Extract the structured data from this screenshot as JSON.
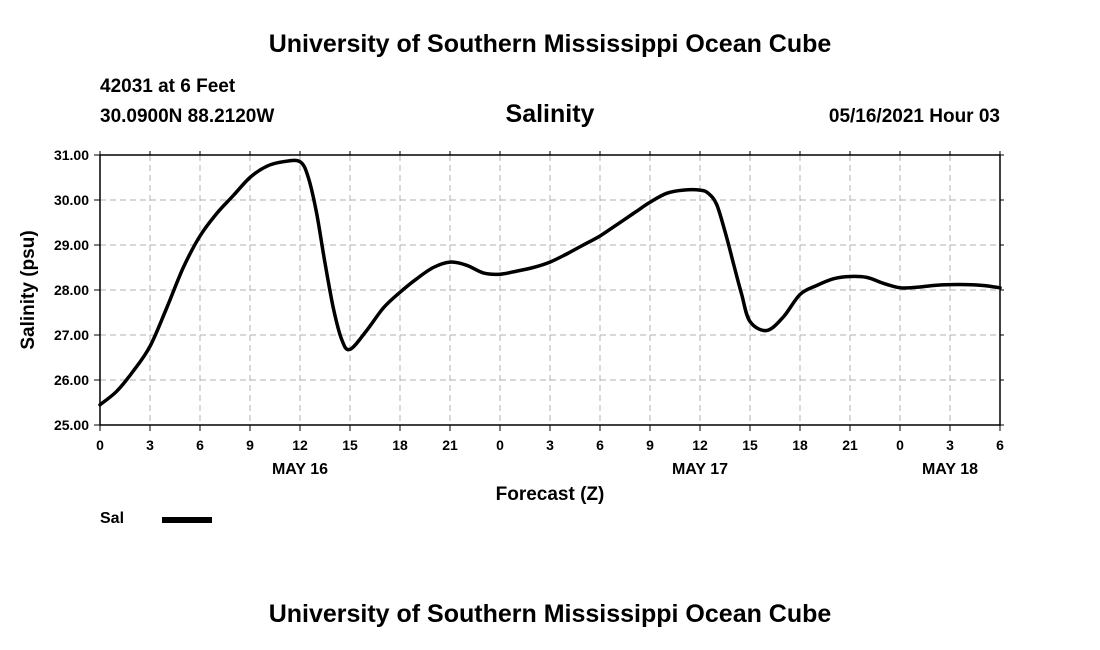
{
  "header": {
    "title": "University of Southern Mississippi Ocean Cube",
    "station": "42031 at 6 Feet",
    "coords": "30.0900N  88.2120W",
    "datetime": "05/16/2021 Hour 03"
  },
  "footer": {
    "title": "University of Southern Mississippi Ocean Cube"
  },
  "chart_data": {
    "type": "line",
    "title": "Salinity",
    "xlabel": "Forecast (Z)",
    "ylabel": "Salinity (psu)",
    "ylim": [
      25.0,
      31.0
    ],
    "xlim": [
      0,
      54
    ],
    "grid": true,
    "line_color": "#000000",
    "x_ticks": [
      0,
      3,
      6,
      9,
      12,
      15,
      18,
      21,
      24,
      27,
      30,
      33,
      36,
      39,
      42,
      45,
      48,
      51,
      54
    ],
    "x_tick_labels": [
      "0",
      "3",
      "6",
      "9",
      "12",
      "15",
      "18",
      "21",
      "0",
      "3",
      "6",
      "9",
      "12",
      "15",
      "18",
      "21",
      "0",
      "3",
      "6"
    ],
    "y_ticks": [
      25.0,
      26.0,
      27.0,
      28.0,
      29.0,
      30.0,
      31.0
    ],
    "y_tick_labels": [
      "25.00",
      "26.00",
      "27.00",
      "28.00",
      "29.00",
      "30.00",
      "31.00"
    ],
    "day_labels": [
      {
        "x": 12,
        "label": "MAY 16"
      },
      {
        "x": 36,
        "label": "MAY 17"
      },
      {
        "x": 51,
        "label": "MAY 18"
      }
    ],
    "legend_placement": "bottom-left",
    "series": [
      {
        "name": "Sal",
        "x": [
          0,
          1,
          2,
          3,
          4,
          5,
          6,
          7,
          8,
          9,
          10,
          11,
          12,
          12.5,
          13,
          13.5,
          14,
          14.5,
          15,
          16,
          17,
          18,
          19,
          20,
          21,
          22,
          23,
          24,
          25,
          26,
          27,
          28,
          29,
          30,
          31,
          32,
          33,
          34,
          35,
          36,
          36.5,
          37,
          37.5,
          38,
          38.5,
          39,
          40,
          41,
          42,
          43,
          44,
          45,
          46,
          47,
          48,
          49,
          50,
          51,
          52,
          53,
          54
        ],
        "values": [
          25.45,
          25.75,
          26.2,
          26.75,
          27.6,
          28.5,
          29.2,
          29.7,
          30.1,
          30.5,
          30.75,
          30.85,
          30.85,
          30.5,
          29.7,
          28.6,
          27.6,
          26.9,
          26.68,
          27.1,
          27.6,
          27.95,
          28.25,
          28.5,
          28.62,
          28.55,
          28.38,
          28.35,
          28.42,
          28.5,
          28.62,
          28.8,
          29.0,
          29.2,
          29.45,
          29.7,
          29.95,
          30.15,
          30.22,
          30.22,
          30.15,
          29.9,
          29.3,
          28.6,
          27.9,
          27.3,
          27.1,
          27.4,
          27.9,
          28.1,
          28.25,
          28.3,
          28.28,
          28.15,
          28.05,
          28.06,
          28.1,
          28.12,
          28.12,
          28.1,
          28.05
        ]
      }
    ]
  }
}
